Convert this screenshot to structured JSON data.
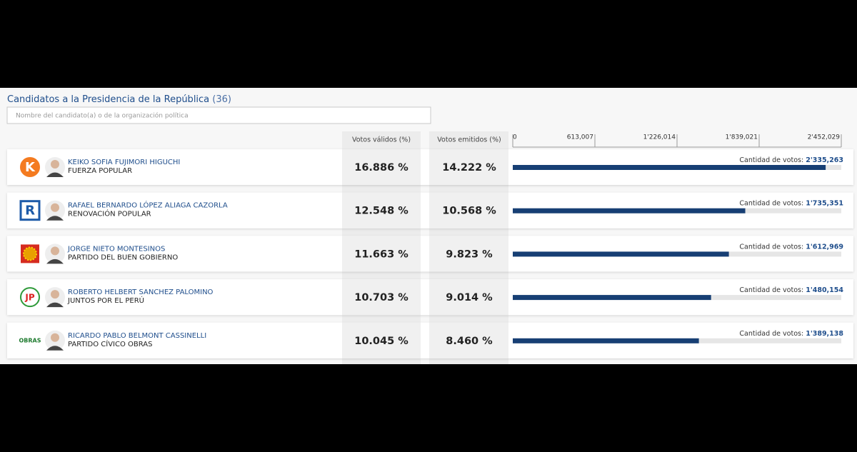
{
  "header": {
    "title": "Candidatos a la Presidencia de la República",
    "count": "(36)"
  },
  "search": {
    "placeholder": "Nombre del candidato(a) o de la organización política"
  },
  "columns": {
    "valid": "Votos válidos (%)",
    "emitted": "Votos emitidos (%)"
  },
  "axis": {
    "lim": [
      0,
      2452029
    ],
    "ticks": [
      0,
      {
        "value": 613007,
        "label": "613,007"
      },
      {
        "value": 1226014,
        "label": "1'226,014"
      },
      {
        "value": 1839021,
        "label": "1'839,021"
      },
      {
        "value": 2452029,
        "label": "2'452,029"
      }
    ]
  },
  "rows": [
    {
      "name": "KEIKO SOFIA FUJIMORI HIGUCHI",
      "party": "FUERZA POPULAR",
      "logo_text": "K",
      "logo_color": "#f47b20",
      "valid": "16.886 %",
      "emitted": "14.222 %",
      "votes_caption": "Cantidad de votos:",
      "votes": 2335263,
      "votes_label": "2'335,263"
    },
    {
      "name": "RAFAEL BERNARDO LÓPEZ ALIAGA CAZORLA",
      "party": "RENOVACIÓN POPULAR",
      "logo_text": "R",
      "logo_color": "#1d5aa8",
      "valid": "12.548 %",
      "emitted": "10.568 %",
      "votes_caption": "Cantidad de votos:",
      "votes": 1735351,
      "votes_label": "1'735,351"
    },
    {
      "name": "JORGE NIETO MONTESINOS",
      "party": "PARTIDO DEL BUEN GOBIERNO",
      "logo_color": "#e8a000",
      "valid": "11.663 %",
      "emitted": "9.823 %",
      "votes_caption": "Cantidad de votos:",
      "votes": 1612969,
      "votes_label": "1'612,969"
    },
    {
      "name": "ROBERTO HELBERT SANCHEZ PALOMINO",
      "party": "JUNTOS POR EL PERÚ",
      "logo_text": "JP",
      "logo_color": "#2f9a3a",
      "valid": "10.703 %",
      "emitted": "9.014 %",
      "votes_caption": "Cantidad de votos:",
      "votes": 1480154,
      "votes_label": "1'480,154"
    },
    {
      "name": "RICARDO PABLO BELMONT CASSINELLI",
      "party": "PARTIDO CÍVICO OBRAS",
      "logo_text": "OBRAS",
      "logo_color": "#1d7a2e",
      "valid": "10.045 %",
      "emitted": "8.460 %",
      "votes_caption": "Cantidad de votos:",
      "votes": 1389138,
      "votes_label": "1'389,138"
    }
  ],
  "bar_color": "#173f74"
}
